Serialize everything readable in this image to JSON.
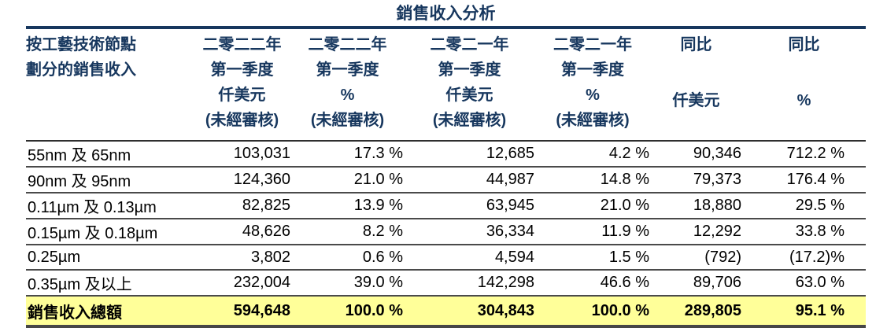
{
  "page": {
    "title": "銷售收入分析"
  },
  "colors": {
    "header_text": "#17375E",
    "title_rule": "#17375E",
    "row_rule": "#4a4a4a",
    "total_highlight": "#FFFF99"
  },
  "table": {
    "stub_header": {
      "line1": "按工藝技術節點",
      "line2": "劃分的銷售收入"
    },
    "column_headers": [
      {
        "lines": [
          "二零二二年",
          "第一季度",
          "仟美元",
          "(未經審核)"
        ]
      },
      {
        "lines": [
          "二零二二年",
          "第一季度",
          "%",
          "(未經審核)"
        ]
      },
      {
        "lines": [
          "二零二一年",
          "第一季度",
          "仟美元",
          "(未經審核)"
        ]
      },
      {
        "lines": [
          "二零二一年",
          "第一季度",
          "%",
          "(未經審核)"
        ]
      },
      {
        "lines": [
          "同比",
          "",
          "仟美元",
          ""
        ]
      },
      {
        "lines": [
          "同比",
          "",
          "%",
          ""
        ]
      }
    ],
    "rows": [
      {
        "label": "55nm 及 65nm",
        "values": [
          "103,031",
          "17.3 %",
          "12,685",
          "4.2 %",
          "90,346",
          "712.2 %"
        ]
      },
      {
        "label": "90nm 及 95nm",
        "values": [
          "124,360",
          "21.0 %",
          "44,987",
          "14.8 %",
          "79,373",
          "176.4 %"
        ]
      },
      {
        "label": "0.11µm 及 0.13µm",
        "values": [
          "82,825",
          "13.9 %",
          "63,945",
          "21.0 %",
          "18,880",
          "29.5 %"
        ]
      },
      {
        "label": "0.15µm 及 0.18µm",
        "values": [
          "48,626",
          "8.2 %",
          "36,334",
          "11.9 %",
          "12,292",
          "33.8 %"
        ]
      },
      {
        "label": "0.25µm",
        "values": [
          "3,802",
          "0.6 %",
          "4,594",
          "1.5 %",
          "(792)",
          "(17.2)%"
        ]
      },
      {
        "label": "0.35µm 及以上",
        "values": [
          "232,004",
          "39.0 %",
          "142,298",
          "46.6 %",
          "89,706",
          "63.0 %"
        ]
      }
    ],
    "total_row": {
      "label": "銷售收入總額",
      "values": [
        "594,648",
        "100.0 %",
        "304,843",
        "100.0 %",
        "289,805",
        "95.1 %"
      ]
    }
  }
}
